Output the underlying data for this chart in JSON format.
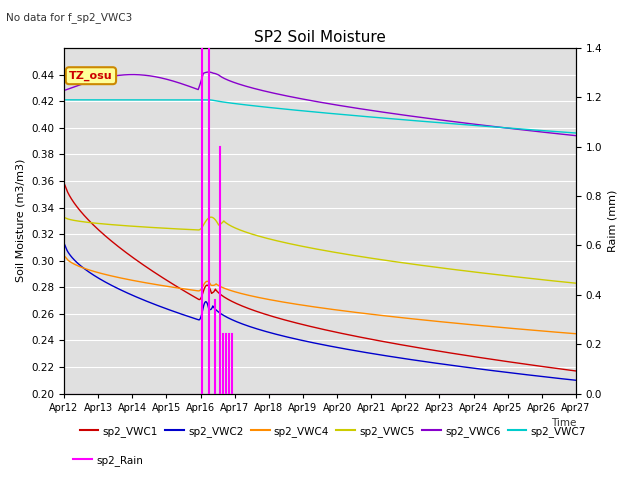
{
  "title": "SP2 Soil Moisture",
  "no_data_text": "No data for f_sp2_VWC3",
  "xlabel": "Time",
  "ylabel_left": "Soil Moisture (m3/m3)",
  "ylabel_right": "Raim (mm)",
  "ylim_left": [
    0.2,
    0.46
  ],
  "ylim_right": [
    0.0,
    1.4
  ],
  "xtick_labels": [
    "Apr 12",
    "Apr 13",
    "Apr 14",
    "Apr 15",
    "Apr 16",
    "Apr 17",
    "Apr 18",
    "Apr 19",
    "Apr 20",
    "Apr 21",
    "Apr 22",
    "Apr 23",
    "Apr 24",
    "Apr 25",
    "Apr 26",
    "Apr 27"
  ],
  "yticks_left": [
    0.2,
    0.22,
    0.24,
    0.26,
    0.28,
    0.3,
    0.32,
    0.34,
    0.36,
    0.38,
    0.4,
    0.42,
    0.44
  ],
  "yticks_right": [
    0.0,
    0.2,
    0.4,
    0.6,
    0.8,
    1.0,
    1.2,
    1.4
  ],
  "background_color": "#e0e0e0",
  "legend_entries": [
    "sp2_VWC1",
    "sp2_VWC2",
    "sp2_VWC4",
    "sp2_VWC5",
    "sp2_VWC6",
    "sp2_VWC7",
    "sp2_Rain"
  ],
  "line_colors": {
    "VWC1": "#cc0000",
    "VWC2": "#0000cc",
    "VWC4": "#ff8c00",
    "VWC5": "#cccc00",
    "VWC6": "#8800cc",
    "VWC7": "#00cccc",
    "Rain": "#ff00ff"
  },
  "annotation_text": "TZ_osu",
  "annotation_bg": "#ffff99",
  "annotation_border": "#cc8800"
}
